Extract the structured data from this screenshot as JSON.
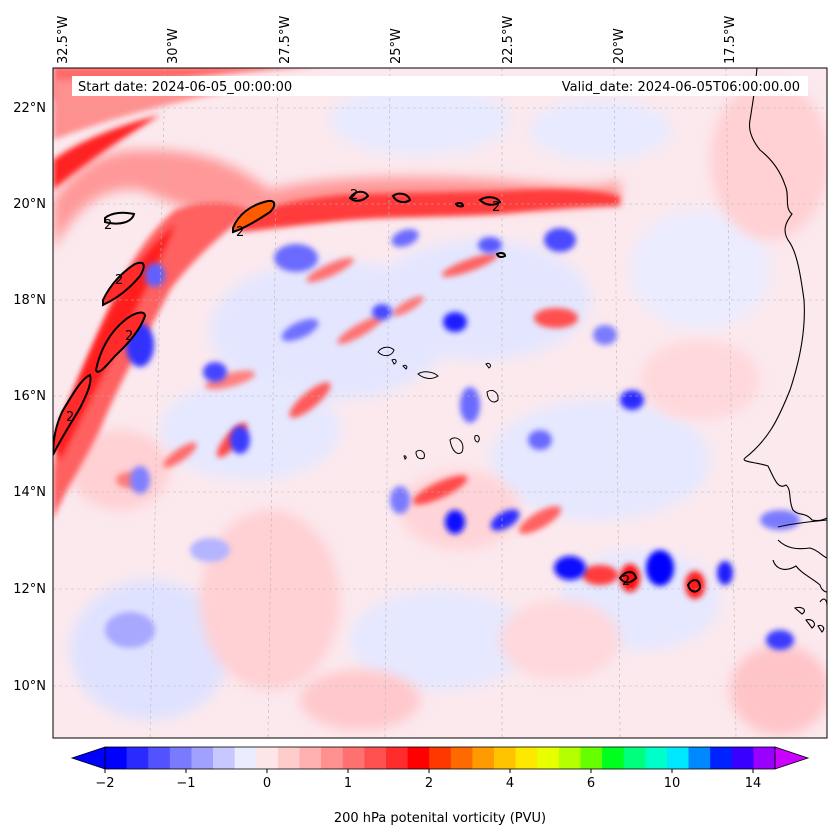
{
  "header": {
    "start_date": "Start date: 2024-06-05_00:00:00",
    "valid_date": "Valid_date: 2024-06-05T06:00:00.00"
  },
  "map": {
    "lon_labels": [
      "32.5°W",
      "30°W",
      "27.5°W",
      "25°W",
      "22.5°W",
      "20°W",
      "17.5°W"
    ],
    "lat_labels": [
      "22°N",
      "20°N",
      "18°N",
      "16°N",
      "14°N",
      "12°N",
      "10°N"
    ],
    "contour_label": "2",
    "contour_level": 2,
    "region": "Cabo Verde / West African coast"
  },
  "colorbar": {
    "title": "200 hPa potenital vorticity (PVU)",
    "tick_labels": [
      "−2",
      "−1",
      "0",
      "1",
      "2",
      "4",
      "6",
      "8",
      "10",
      "14"
    ],
    "colors": [
      "#0000ff",
      "#2a2aff",
      "#5252ff",
      "#7a7aff",
      "#a0a0ff",
      "#c8c8ff",
      "#ececff",
      "#ffe6e6",
      "#ffcccc",
      "#ffb0b0",
      "#ff9090",
      "#ff7070",
      "#ff5050",
      "#ff2c2c",
      "#ff0000",
      "#ff3800",
      "#ff6a00",
      "#ff9a00",
      "#ffc400",
      "#ffe800",
      "#e8ff00",
      "#b4ff00",
      "#66ff00",
      "#00ff1e",
      "#00ff7a",
      "#00ffc8",
      "#00e8ff",
      "#0088ff",
      "#0022ff",
      "#3a00ff",
      "#9a00ff"
    ],
    "extend_left_color": "#0000ff",
    "extend_right_color": "#cc00ff"
  }
}
